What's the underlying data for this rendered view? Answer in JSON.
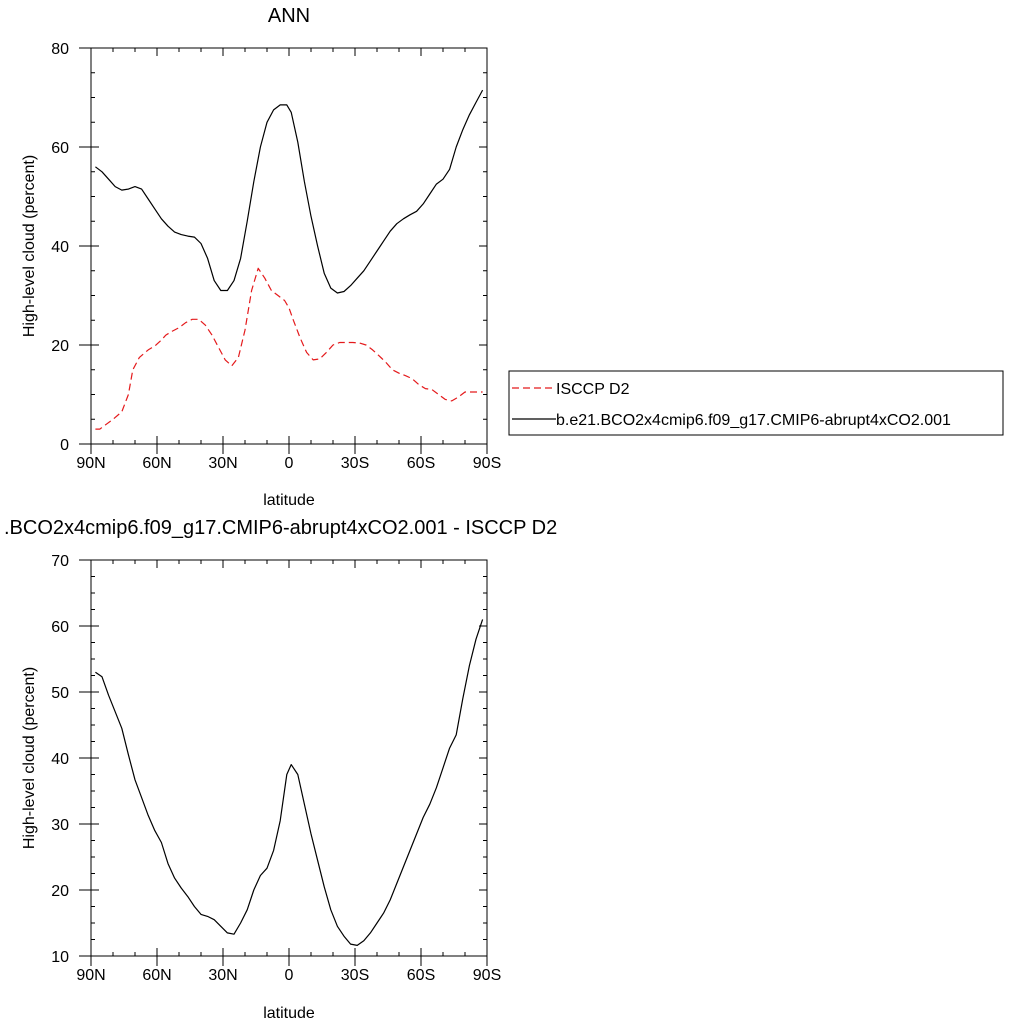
{
  "chart_data": [
    {
      "type": "line",
      "title": "ANN",
      "xlabel": "latitude",
      "ylabel": "High-level cloud (percent)",
      "xlim": [
        90,
        -90
      ],
      "ylim": [
        0,
        80
      ],
      "x_ticks": [
        90,
        60,
        30,
        0,
        -30,
        -60,
        -90
      ],
      "x_tick_labels": [
        "90N",
        "60N",
        "30N",
        "0",
        "30S",
        "60S",
        "90S"
      ],
      "y_ticks": [
        0,
        20,
        40,
        60,
        80
      ],
      "y_tick_labels": [
        "0",
        "20",
        "40",
        "60",
        "80"
      ],
      "legend_position": "right",
      "series": [
        {
          "name": "ISCCP D2",
          "color": "#e41a1c",
          "dash": "dashed",
          "x": [
            88,
            86,
            83,
            80,
            76,
            73,
            71,
            68,
            64,
            61,
            58,
            56,
            53,
            50,
            47,
            44,
            41,
            38,
            35,
            32,
            29,
            26,
            23,
            20,
            17,
            14,
            11,
            8,
            5,
            2,
            0,
            -2,
            -5,
            -8,
            -11,
            -14,
            -17,
            -20,
            -23,
            -26,
            -29,
            -32,
            -35,
            -38,
            -41,
            -44,
            -47,
            -50,
            -53,
            -56,
            -59,
            -62,
            -65,
            -68,
            -71,
            -74,
            -77,
            -80,
            -83,
            -86,
            -88
          ],
          "y": [
            3.0,
            3.0,
            4.0,
            5.0,
            6.5,
            10.0,
            15.0,
            17.5,
            19.0,
            19.8,
            21.0,
            22.0,
            22.8,
            23.5,
            24.5,
            25.2,
            25.2,
            24.0,
            22.0,
            19.5,
            17.0,
            15.8,
            17.5,
            23.0,
            31.0,
            35.5,
            33.5,
            31.0,
            30.0,
            29.0,
            27.5,
            25.0,
            21.5,
            18.5,
            17.0,
            17.2,
            18.5,
            20.0,
            20.5,
            20.5,
            20.5,
            20.4,
            20.0,
            19.0,
            17.8,
            16.5,
            15.0,
            14.3,
            13.8,
            13.2,
            12.0,
            11.2,
            11.0,
            10.0,
            9.0,
            8.7,
            9.5,
            10.5,
            10.5,
            10.5,
            10.5
          ]
        },
        {
          "name": "b.e21.BCO2x4cmip6.f09_g17.CMIP6-abrupt4xCO2.001",
          "color": "#000000",
          "dash": "solid",
          "x": [
            88,
            85,
            82,
            79,
            76,
            73,
            70,
            67,
            64,
            61,
            58,
            55,
            52,
            49,
            46,
            43,
            40,
            37,
            34,
            31,
            28,
            25,
            22,
            19,
            16,
            13,
            10,
            7,
            4,
            1,
            -1,
            -4,
            -7,
            -10,
            -13,
            -16,
            -19,
            -22,
            -25,
            -28,
            -31,
            -34,
            -37,
            -40,
            -43,
            -46,
            -49,
            -52,
            -55,
            -58,
            -61,
            -64,
            -67,
            -70,
            -73,
            -76,
            -79,
            -82,
            -85,
            -88
          ],
          "y": [
            56.0,
            55.0,
            53.5,
            52.0,
            51.3,
            51.5,
            52.0,
            51.5,
            49.5,
            47.5,
            45.5,
            44.0,
            42.8,
            42.3,
            42.0,
            41.8,
            40.5,
            37.5,
            33.0,
            31.0,
            31.0,
            33.0,
            37.5,
            45.0,
            53.0,
            60.0,
            65.0,
            67.5,
            68.5,
            68.5,
            67.0,
            61.0,
            53.0,
            46.0,
            40.0,
            34.5,
            31.5,
            30.5,
            30.8,
            32.0,
            33.5,
            35.0,
            37.0,
            39.0,
            41.0,
            43.0,
            44.5,
            45.5,
            46.3,
            47.0,
            48.5,
            50.5,
            52.5,
            53.5,
            55.5,
            60.0,
            63.5,
            66.5,
            69.0,
            71.5
          ]
        }
      ]
    },
    {
      "type": "line",
      "title": ".BCO2x4cmip6.f09_g17.CMIP6-abrupt4xCO2.001 - ISCCP D2",
      "xlabel": "latitude",
      "ylabel": "High-level cloud (percent)",
      "xlim": [
        90,
        -90
      ],
      "ylim": [
        10,
        70
      ],
      "x_ticks": [
        90,
        60,
        30,
        0,
        -30,
        -60,
        -90
      ],
      "x_tick_labels": [
        "90N",
        "60N",
        "30N",
        "0",
        "30S",
        "60S",
        "90S"
      ],
      "y_ticks": [
        10,
        20,
        30,
        40,
        50,
        60,
        70
      ],
      "y_tick_labels": [
        "10",
        "20",
        "30",
        "40",
        "50",
        "60",
        "70"
      ],
      "series": [
        {
          "color": "#000000",
          "dash": "solid",
          "x": [
            88,
            85,
            82,
            79,
            76,
            73,
            70,
            67,
            64,
            61,
            58,
            55,
            52,
            49,
            46,
            43,
            40,
            37,
            34,
            31,
            28,
            25,
            22,
            19,
            16,
            13,
            10,
            7,
            4,
            1,
            -1,
            -4,
            -7,
            -10,
            -13,
            -16,
            -19,
            -22,
            -25,
            -28,
            -31,
            -34,
            -37,
            -40,
            -43,
            -46,
            -49,
            -52,
            -55,
            -58,
            -61,
            -64,
            -67,
            -70,
            -73,
            -76,
            -79,
            -82,
            -85,
            -88
          ],
          "y": [
            53.0,
            52.3,
            49.5,
            47.0,
            44.5,
            40.5,
            36.7,
            34.0,
            31.3,
            29.0,
            27.2,
            24.0,
            21.8,
            20.3,
            19.0,
            17.5,
            16.3,
            16.0,
            15.5,
            14.5,
            13.5,
            13.3,
            15.0,
            17.0,
            20.0,
            22.2,
            23.3,
            26.0,
            30.5,
            37.5,
            39.0,
            37.5,
            33.0,
            28.5,
            24.5,
            20.5,
            17.0,
            14.5,
            13.0,
            11.8,
            11.6,
            12.3,
            13.5,
            15.0,
            16.5,
            18.5,
            21.0,
            23.5,
            26.0,
            28.5,
            31.0,
            33.0,
            35.5,
            38.5,
            41.5,
            43.5,
            49.0,
            54.0,
            58.0,
            61.0
          ]
        }
      ]
    }
  ]
}
